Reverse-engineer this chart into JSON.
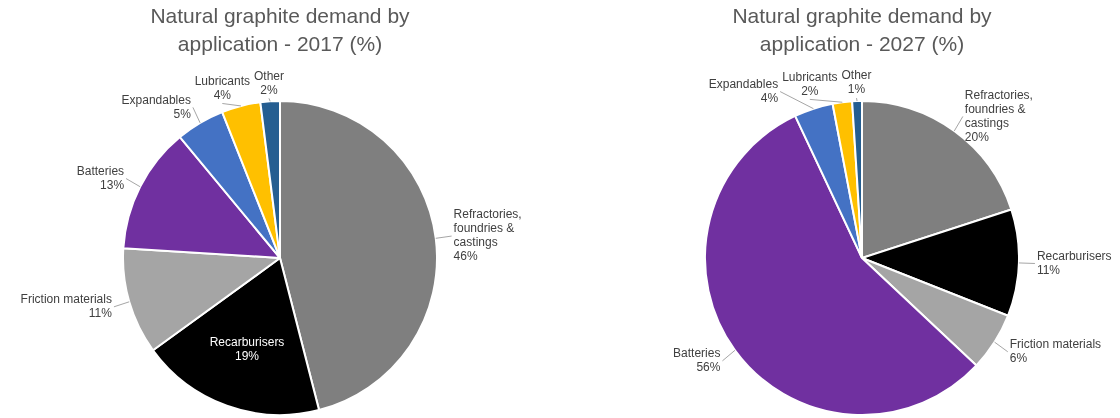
{
  "chart_data": [
    {
      "type": "pie",
      "title": "Natural graphite demand by application - 2017 (%)",
      "categories": [
        "Refractories, foundries & castings",
        "Recarburisers",
        "Friction materials",
        "Batteries",
        "Expandables",
        "Lubricants",
        "Other"
      ],
      "values": [
        46,
        19,
        11,
        13,
        5,
        4,
        2
      ],
      "value_labels": [
        "46%",
        "19%",
        "11%",
        "13%",
        "5%",
        "4%",
        "2%"
      ],
      "colors": [
        "#7f7f7f",
        "#000000",
        "#a5a5a5",
        "#7030a0",
        "#4472c4",
        "#ffc000",
        "#255e91"
      ]
    },
    {
      "type": "pie",
      "title": "Natural graphite demand by application - 2027 (%)",
      "categories": [
        "Refractories, foundries & castings",
        "Recarburisers",
        "Friction materials",
        "Batteries",
        "Expandables",
        "Lubricants",
        "Other"
      ],
      "values": [
        20,
        11,
        6,
        56,
        4,
        2,
        1
      ],
      "value_labels": [
        "20%",
        "11%",
        "6%",
        "56%",
        "4%",
        "2%",
        "1%"
      ],
      "colors": [
        "#7f7f7f",
        "#000000",
        "#a5a5a5",
        "#7030a0",
        "#4472c4",
        "#ffc000",
        "#255e91"
      ]
    }
  ]
}
